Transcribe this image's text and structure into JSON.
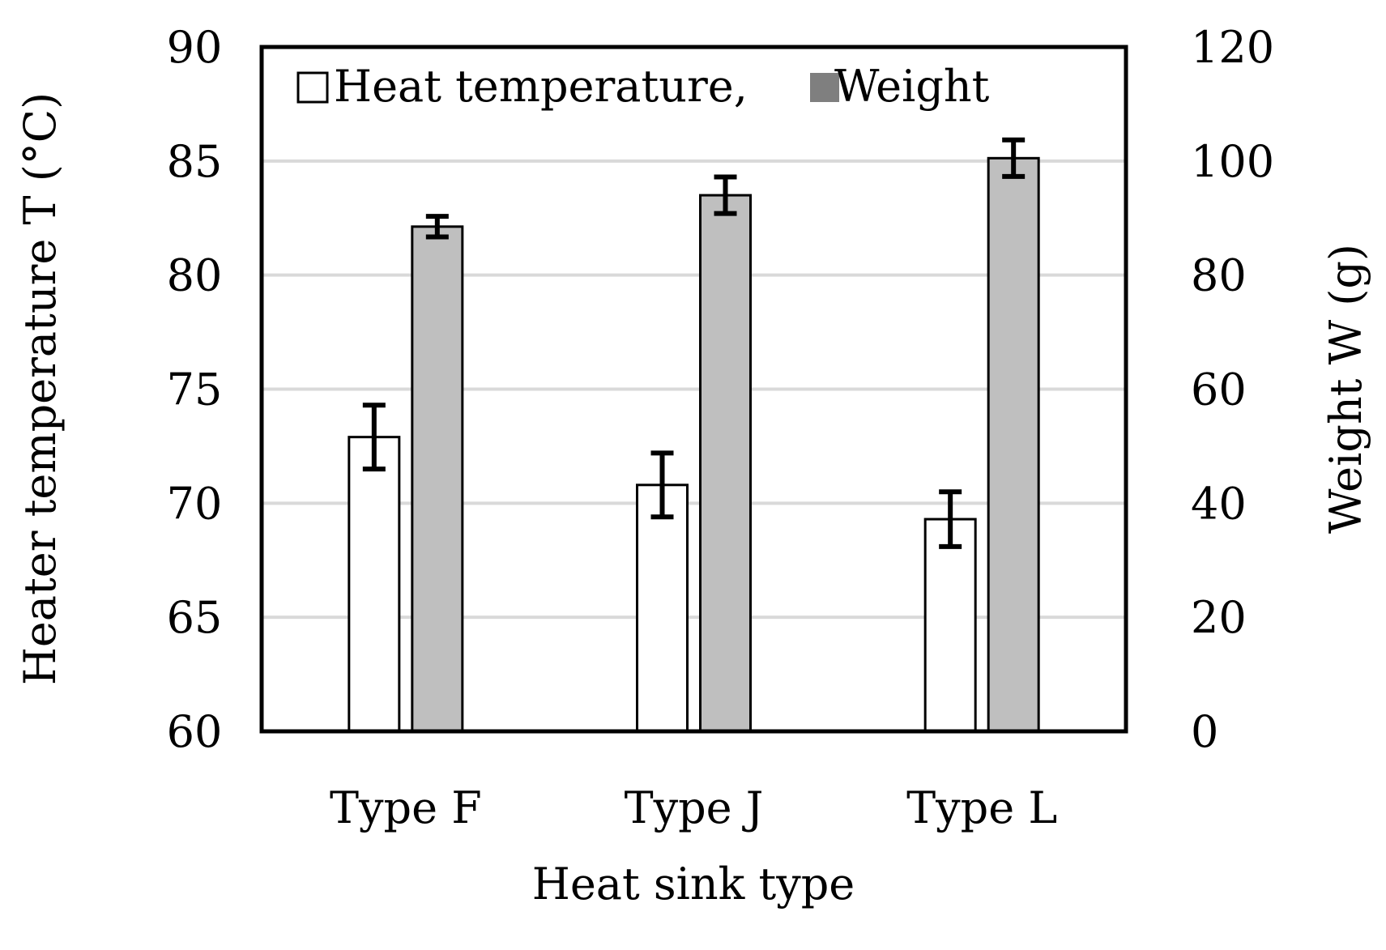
{
  "chart_data": {
    "type": "bar",
    "title": "",
    "xlabel": "Heat sink type",
    "ylabel": "Heater temperature T (°C)",
    "ylabel_right": "Weight W (g)",
    "categories": [
      "Type F",
      "Type J",
      "Type L"
    ],
    "ylim": [
      60,
      90
    ],
    "ylim_right": [
      0,
      120
    ],
    "yticks": [
      "60",
      "65",
      "70",
      "75",
      "80",
      "85",
      "90"
    ],
    "yticks_right": [
      "0",
      "20",
      "40",
      "60",
      "80",
      "100",
      "120"
    ],
    "grid": true,
    "legend_position": "top-left",
    "series": [
      {
        "name": "Heat temperature,",
        "axis": "left",
        "values": [
          72.9,
          70.8,
          69.3
        ],
        "errors": [
          1.4,
          1.4,
          1.2
        ],
        "color": "#ffffff"
      },
      {
        "name": "Weight",
        "axis": "right",
        "values": [
          88.5,
          94.0,
          100.5
        ],
        "errors": [
          1.8,
          3.2,
          3.2
        ],
        "color": "#bfbfbf"
      }
    ],
    "legend_marker_colors": [
      "#ffffff",
      "#7f7f7f"
    ],
    "gridline_color": "#d9d9d9"
  }
}
